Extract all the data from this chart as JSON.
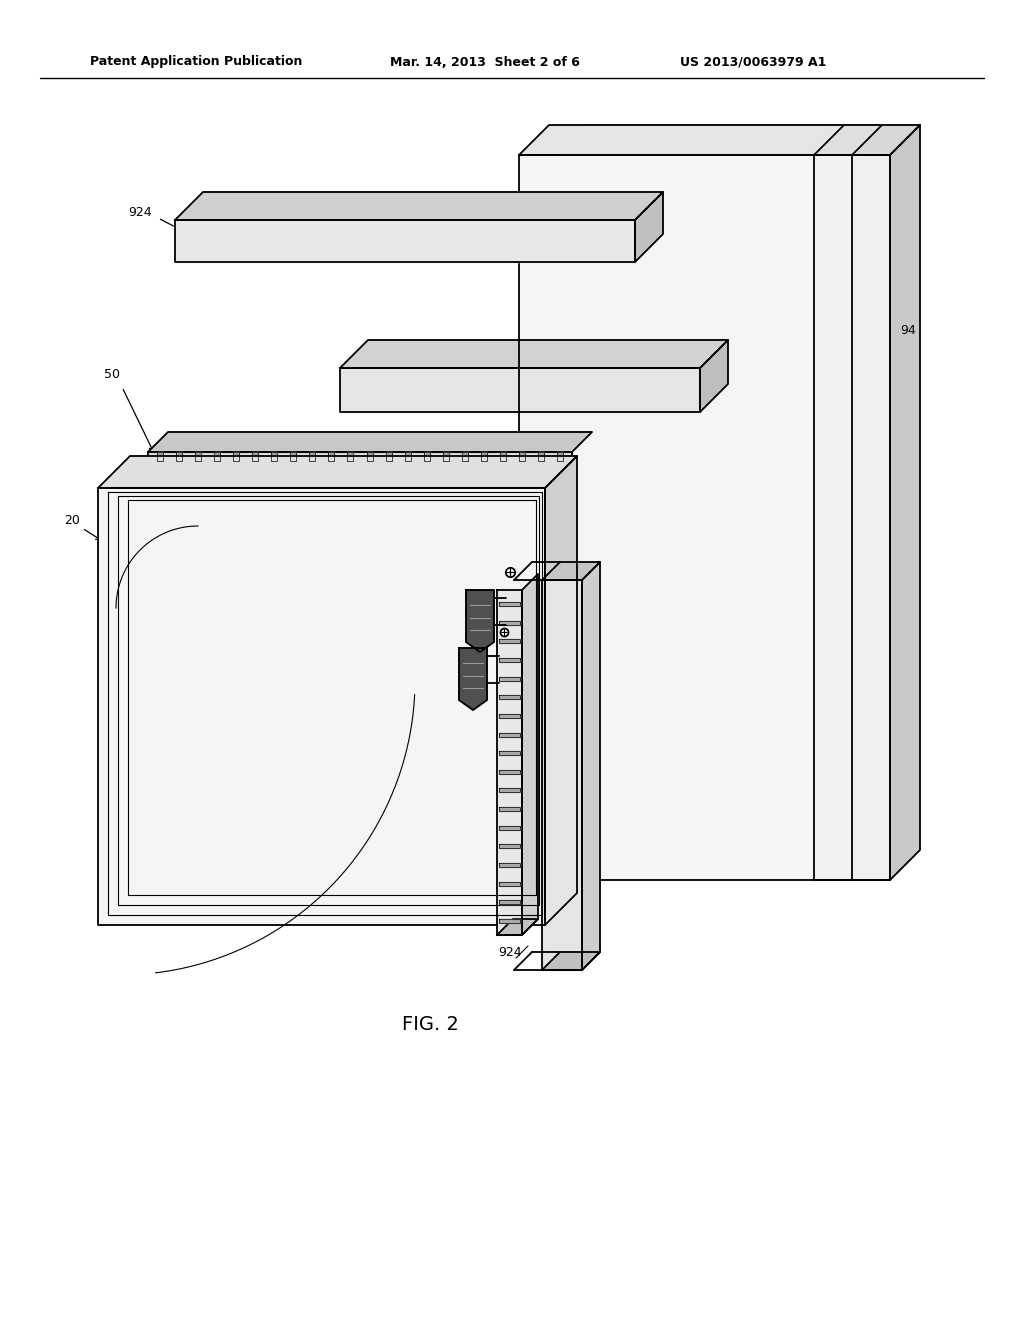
{
  "title_left": "Patent Application Publication",
  "title_mid": "Mar. 14, 2013  Sheet 2 of 6",
  "title_right": "US 2013/0063979 A1",
  "figure_label": "FIG. 2",
  "bg_color": "#ffffff",
  "line_color": "#000000",
  "text_color": "#000000"
}
